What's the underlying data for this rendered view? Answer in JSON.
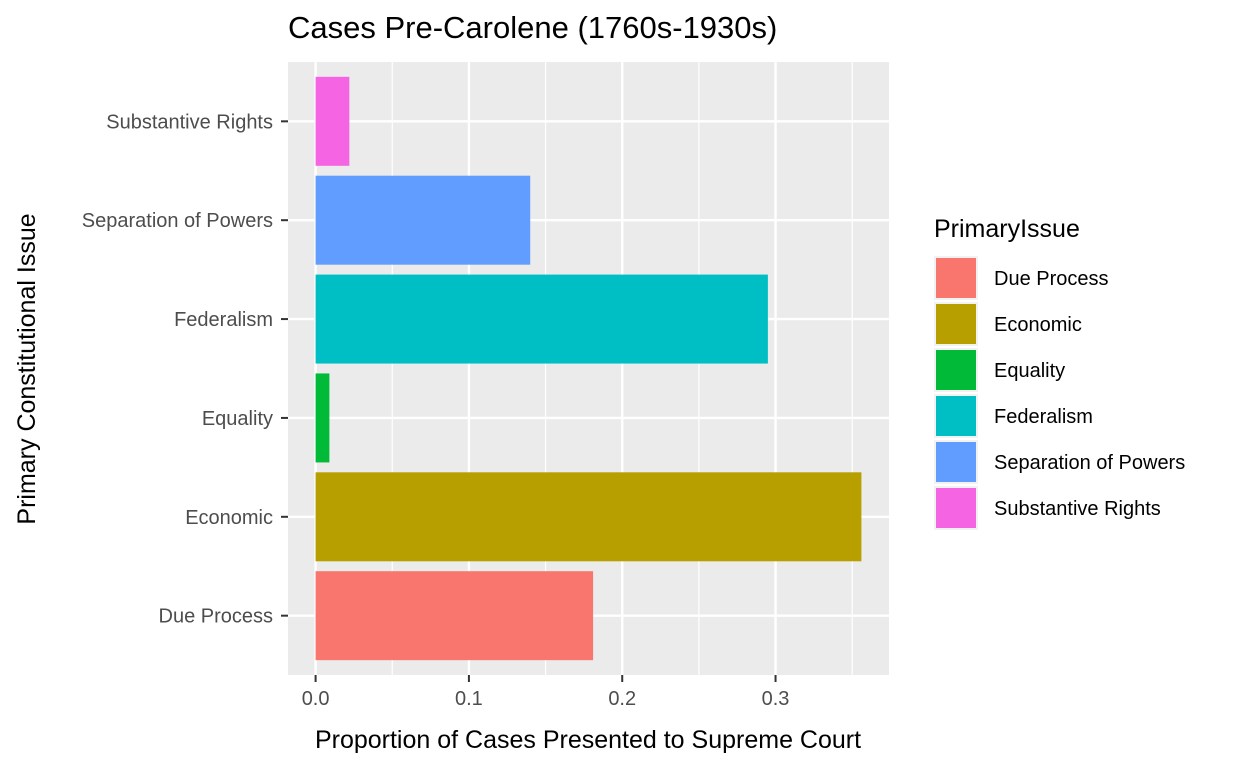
{
  "chart_data": {
    "type": "bar",
    "orientation": "horizontal",
    "title": "Cases Pre-Carolene (1760s-1930s)",
    "xlabel": "Proportion of Cases Presented to Supreme Court",
    "ylabel": "Primary Constitutional Issue",
    "categories": [
      "Due Process",
      "Economic",
      "Equality",
      "Federalism",
      "Separation of Powers",
      "Substantive Rights"
    ],
    "values": [
      0.181,
      0.356,
      0.009,
      0.295,
      0.14,
      0.022
    ],
    "colors": [
      "#F8766D",
      "#B79F00",
      "#00BA38",
      "#00BFC4",
      "#619CFF",
      "#F564E3"
    ],
    "xlim": [
      -0.018,
      0.374
    ],
    "x_ticks": [
      0.0,
      0.1,
      0.2,
      0.3
    ],
    "x_tick_labels": [
      "0.0",
      "0.1",
      "0.2",
      "0.3"
    ],
    "grid": true,
    "panel_background": "#EBEBEB",
    "legend": {
      "title": "PrimaryIssue",
      "placement": "right",
      "entries": [
        "Due Process",
        "Economic",
        "Equality",
        "Federalism",
        "Separation of Powers",
        "Substantive Rights"
      ]
    }
  }
}
